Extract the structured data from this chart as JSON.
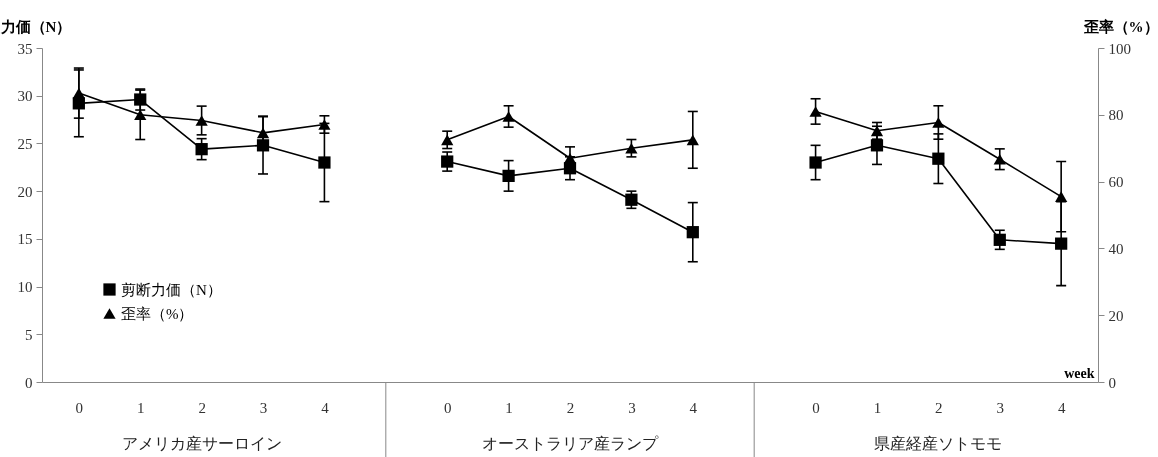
{
  "chart_data": {
    "type": "line",
    "ylabel": "力価（N）",
    "y2label": "歪率（%）",
    "xlabel": "week",
    "categories": [
      "0",
      "1",
      "2",
      "3",
      "4",
      null,
      "0",
      "1",
      "2",
      "3",
      "4",
      null,
      "0",
      "1",
      "2",
      "3",
      "4"
    ],
    "annotations": [
      "アメリカ産サーロイン",
      "オーストラリア産ランプ",
      "県産経産ソトモモ"
    ],
    "series": [
      {
        "name": "剪断力価（N）",
        "color": "#000000",
        "marker": "square",
        "values": [
          29.2,
          29.6,
          24.4,
          24.8,
          23.0,
          null,
          23.1,
          21.6,
          22.4,
          19.1,
          15.7,
          null,
          23.0,
          24.8,
          23.4,
          14.9,
          14.5
        ],
        "errors": [
          3.5,
          1.1,
          1.1,
          3.0,
          4.1,
          null,
          1.0,
          1.6,
          1.2,
          0.9,
          3.1,
          null,
          1.8,
          2.0,
          2.6,
          1.0,
          4.4
        ]
      },
      {
        "name": "歪率（%）",
        "color": "#000000",
        "marker": "triangle",
        "axis": "y2",
        "values": [
          86.5,
          80,
          78.3,
          74.6,
          77.1,
          null,
          72.5,
          79.5,
          67,
          70,
          72.5,
          null,
          81,
          75.2,
          77.7,
          66.7,
          55.5
        ],
        "errors": [
          7.5,
          7.4,
          4.3,
          5,
          2.6,
          null,
          2.6,
          3.2,
          3.4,
          2.6,
          8.5,
          null,
          3.8,
          2.5,
          5,
          3.1,
          10.5
        ]
      }
    ],
    "ylim": [
      0,
      35
    ],
    "yticks": [
      0,
      5,
      10,
      15,
      20,
      25,
      30,
      35
    ],
    "y2lim": [
      0,
      100
    ],
    "y2ticks": [
      0,
      20,
      40,
      60,
      80,
      100
    ],
    "legend": "bottom left",
    "grid": false
  }
}
